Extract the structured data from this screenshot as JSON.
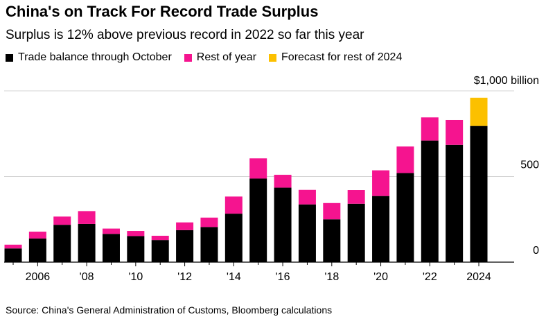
{
  "title": "China's on Track For Record Trade Surplus",
  "subtitle": "Surplus is 12% above previous record in 2022 so far this year",
  "legend": [
    {
      "label": "Trade balance through October",
      "color": "#000000"
    },
    {
      "label": "Rest of year",
      "color": "#f5148f"
    },
    {
      "label": "Forecast for rest of 2024",
      "color": "#fcc000"
    }
  ],
  "source": "Source: China's General Administration of Customs, Bloomberg calculations",
  "chart_data": {
    "type": "bar",
    "stacked": true,
    "x": [
      2005,
      2006,
      2007,
      2008,
      2009,
      2010,
      2011,
      2012,
      2013,
      2014,
      2015,
      2016,
      2017,
      2018,
      2019,
      2020,
      2021,
      2022,
      2023,
      2024
    ],
    "series": [
      {
        "name": "Trade balance through October",
        "color": "#000000",
        "values": [
          80,
          138,
          218,
          223,
          165,
          152,
          129,
          187,
          205,
          283,
          488,
          435,
          337,
          250,
          341,
          386,
          520,
          710,
          685,
          795
        ]
      },
      {
        "name": "Rest of year",
        "color": "#f5148f",
        "values": [
          22,
          40,
          48,
          75,
          31,
          30,
          25,
          45,
          55,
          100,
          118,
          75,
          85,
          95,
          80,
          150,
          155,
          135,
          145,
          0
        ]
      },
      {
        "name": "Forecast for rest of 2024",
        "color": "#fcc000",
        "values": [
          0,
          0,
          0,
          0,
          0,
          0,
          0,
          0,
          0,
          0,
          0,
          0,
          0,
          0,
          0,
          0,
          0,
          0,
          0,
          165
        ]
      }
    ],
    "x_tick_labels": [
      {
        "year": 2006,
        "label": "2006"
      },
      {
        "year": 2008,
        "label": "'08"
      },
      {
        "year": 2010,
        "label": "'10"
      },
      {
        "year": 2012,
        "label": "'12"
      },
      {
        "year": 2014,
        "label": "'14"
      },
      {
        "year": 2016,
        "label": "'16"
      },
      {
        "year": 2018,
        "label": "'18"
      },
      {
        "year": 2020,
        "label": "'20"
      },
      {
        "year": 2022,
        "label": "'22"
      },
      {
        "year": 2024,
        "label": "2024"
      }
    ],
    "y_ticks": [
      {
        "value": 0,
        "label": "0"
      },
      {
        "value": 500,
        "label": "500"
      },
      {
        "value": 1000,
        "label": "$1,000 billion"
      }
    ],
    "ylim": [
      0,
      1000
    ],
    "grid": true
  }
}
